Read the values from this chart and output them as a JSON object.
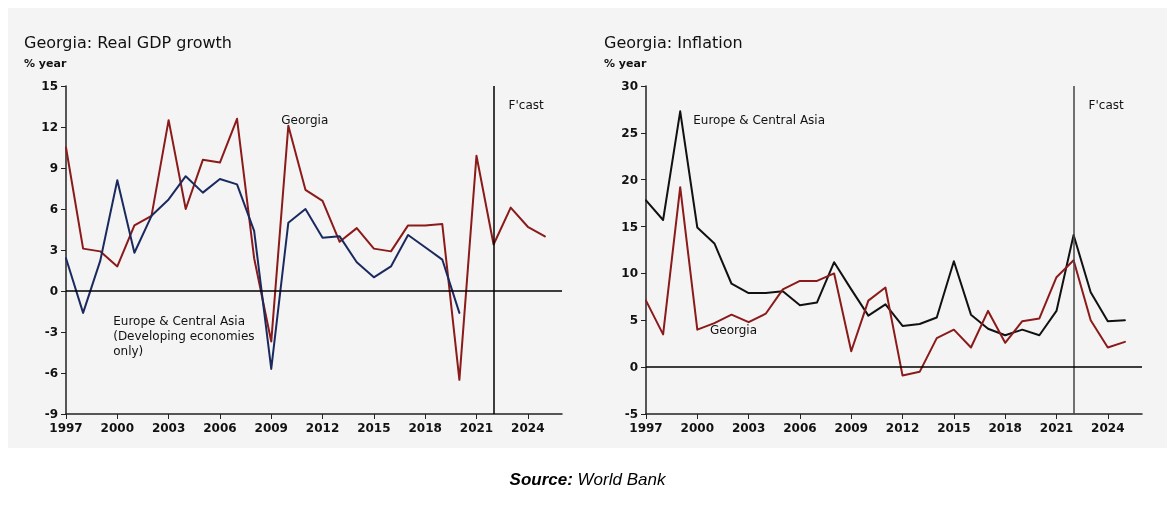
{
  "chart_data": [
    {
      "type": "line",
      "title": "Georgia: Real GDP growth",
      "ylabel": "% year",
      "x": [
        1997,
        1998,
        1999,
        2000,
        2001,
        2002,
        2003,
        2004,
        2005,
        2006,
        2007,
        2008,
        2009,
        2010,
        2011,
        2012,
        2013,
        2014,
        2015,
        2016,
        2017,
        2018,
        2019,
        2020,
        2021,
        2022,
        2023,
        2024,
        2025
      ],
      "series": [
        {
          "name": "Georgia",
          "color": "#8b1a1a",
          "values": [
            10.5,
            3.1,
            2.9,
            1.8,
            4.8,
            5.5,
            12.5,
            6.0,
            9.6,
            9.4,
            12.6,
            2.4,
            -3.7,
            12.1,
            7.4,
            6.6,
            3.6,
            4.6,
            3.1,
            2.9,
            4.8,
            4.8,
            4.9,
            -6.5,
            9.9,
            3.4,
            6.1,
            4.7,
            4.0
          ]
        },
        {
          "name": "Europe & Central Asia (Developing economies only)",
          "color": "#1b2a5e",
          "values": [
            2.4,
            -1.6,
            2.2,
            8.1,
            2.8,
            5.5,
            6.7,
            8.4,
            7.2,
            8.2,
            7.8,
            4.4,
            -5.7,
            5.0,
            6.0,
            3.9,
            4.0,
            2.1,
            1.0,
            1.8,
            4.1,
            3.2,
            2.3,
            -1.6,
            null,
            null,
            null,
            null,
            null
          ]
        }
      ],
      "xlim": [
        1997,
        2026
      ],
      "xticks": [
        1997,
        2000,
        2003,
        2006,
        2009,
        2012,
        2015,
        2018,
        2021,
        2024
      ],
      "ylim": [
        -9,
        15
      ],
      "yticks": [
        -9,
        -6,
        -3,
        0,
        3,
        6,
        9,
        12,
        15
      ],
      "ref_lines": [
        {
          "axis": "x",
          "value": 2022,
          "label": "F'cast",
          "color": "#000000"
        },
        {
          "axis": "y",
          "value": 0,
          "color": "#000000"
        }
      ],
      "grid": false,
      "legend": false,
      "annotations": [
        "Source: World Bank"
      ]
    },
    {
      "type": "line",
      "title": "Georgia: Inflation",
      "ylabel": "% year",
      "x": [
        1997,
        1998,
        1999,
        2000,
        2001,
        2002,
        2003,
        2004,
        2005,
        2006,
        2007,
        2008,
        2009,
        2010,
        2011,
        2012,
        2013,
        2014,
        2015,
        2016,
        2017,
        2018,
        2019,
        2020,
        2021,
        2022,
        2023,
        2024,
        2025
      ],
      "series": [
        {
          "name": "Europe & Central Asia",
          "color": "#111111",
          "values": [
            17.8,
            15.7,
            27.3,
            14.9,
            13.2,
            8.9,
            7.9,
            7.9,
            8.1,
            6.6,
            6.9,
            11.2,
            8.3,
            5.5,
            6.7,
            4.4,
            4.6,
            5.3,
            11.3,
            5.6,
            4.1,
            3.4,
            4.0,
            3.4,
            6.0,
            14.1,
            8.0,
            4.9,
            5.0
          ]
        },
        {
          "name": "Georgia",
          "color": "#8b1a1a",
          "values": [
            7.1,
            3.5,
            19.2,
            4.0,
            4.7,
            5.6,
            4.8,
            5.7,
            8.3,
            9.2,
            9.2,
            10.0,
            1.7,
            7.1,
            8.5,
            -0.9,
            -0.5,
            3.1,
            4.0,
            2.1,
            6.0,
            2.6,
            4.9,
            5.2,
            9.6,
            11.4,
            5.0,
            2.1,
            2.7
          ]
        }
      ],
      "xlim": [
        1997,
        2026
      ],
      "xticks": [
        1997,
        2000,
        2003,
        2006,
        2009,
        2012,
        2015,
        2018,
        2021,
        2024
      ],
      "ylim": [
        -5,
        30
      ],
      "yticks": [
        -5,
        0,
        5,
        10,
        15,
        20,
        25,
        30
      ],
      "ref_lines": [
        {
          "axis": "x",
          "value": 2022,
          "label": "F'cast",
          "color": "#444444"
        },
        {
          "axis": "y",
          "value": 0,
          "color": "#000000"
        }
      ],
      "grid": false,
      "legend": false
    }
  ]
}
